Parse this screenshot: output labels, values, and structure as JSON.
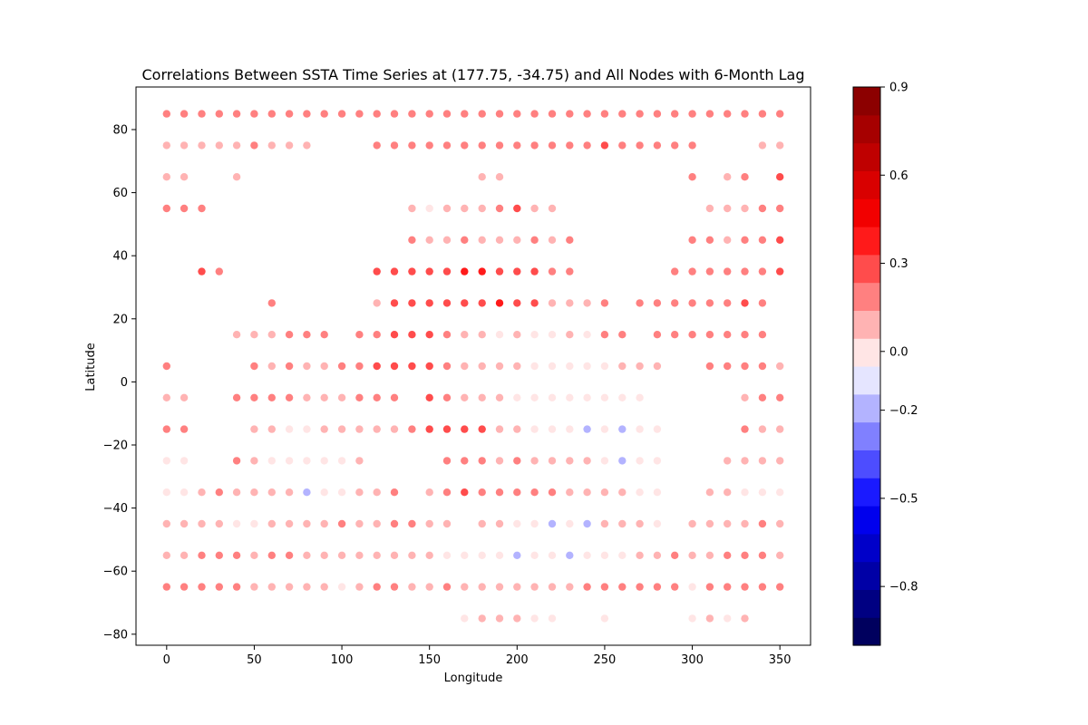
{
  "chart_data": {
    "type": "scatter",
    "title": "Correlations Between SSTA Time Series at (177.75, -34.75) and All Nodes with 6-Month Lag",
    "xlabel": "Longitude",
    "ylabel": "Latitude",
    "xlim": [
      -17.5,
      367.5
    ],
    "ylim": [
      -83.5,
      93.5
    ],
    "xticks": [
      0,
      50,
      100,
      150,
      200,
      250,
      300,
      350
    ],
    "yticks": [
      -80,
      -60,
      -40,
      -20,
      0,
      20,
      40,
      60,
      80
    ],
    "x_tick_labels": [
      "0",
      "50",
      "100",
      "150",
      "200",
      "250",
      "300",
      "350"
    ],
    "y_tick_labels": [
      "−80",
      "−60",
      "−40",
      "−20",
      "0",
      "20",
      "40",
      "60",
      "80"
    ],
    "grid": false,
    "colormap": "seismic",
    "colorbar": {
      "vmin": -1.0,
      "vmax": 0.9,
      "bins": 20,
      "ticks": [
        0.9,
        0.6,
        0.3,
        0.0,
        -0.2,
        -0.5,
        -0.8
      ],
      "tick_labels": [
        "0.9",
        "0.6",
        "0.3",
        "0.0",
        "−0.2",
        "−0.5",
        "−0.8"
      ]
    },
    "x_nodes": [
      0,
      10,
      20,
      30,
      40,
      50,
      60,
      70,
      80,
      90,
      100,
      110,
      120,
      130,
      140,
      150,
      160,
      170,
      180,
      190,
      200,
      210,
      220,
      230,
      240,
      250,
      260,
      270,
      280,
      290,
      300,
      310,
      320,
      330,
      340,
      350
    ],
    "rows": [
      {
        "lat": 85,
        "values": [
          0.2,
          0.2,
          0.2,
          0.2,
          0.2,
          0.2,
          0.2,
          0.2,
          0.2,
          0.2,
          0.2,
          0.2,
          0.2,
          0.2,
          0.2,
          0.2,
          0.2,
          0.2,
          0.2,
          0.2,
          0.2,
          0.2,
          0.2,
          0.2,
          0.2,
          0.2,
          0.2,
          0.2,
          0.2,
          0.2,
          0.2,
          0.2,
          0.2,
          0.2,
          0.2,
          0.2
        ]
      },
      {
        "lat": 75,
        "values": [
          0.1,
          0.1,
          0.1,
          0.1,
          0.1,
          0.2,
          0.1,
          0.1,
          0.1,
          null,
          null,
          null,
          0.2,
          0.2,
          0.2,
          0.2,
          0.2,
          0.2,
          0.2,
          0.2,
          0.2,
          0.2,
          0.2,
          0.2,
          0.2,
          0.3,
          0.2,
          0.2,
          0.2,
          0.2,
          0.2,
          null,
          null,
          null,
          0.1,
          0.1
        ]
      },
      {
        "lat": 65,
        "values": [
          0.1,
          0.1,
          null,
          null,
          0.1,
          null,
          null,
          null,
          null,
          null,
          null,
          null,
          null,
          null,
          null,
          null,
          null,
          null,
          0.1,
          0.1,
          null,
          null,
          null,
          null,
          null,
          null,
          null,
          null,
          null,
          null,
          0.2,
          null,
          0.1,
          0.2,
          null,
          0.3
        ]
      },
      {
        "lat": 55,
        "values": [
          0.2,
          0.2,
          0.2,
          null,
          null,
          null,
          null,
          null,
          null,
          null,
          null,
          null,
          null,
          null,
          0.1,
          -0.05,
          0.1,
          0.1,
          0.1,
          0.2,
          0.3,
          0.1,
          0.1,
          null,
          null,
          null,
          null,
          null,
          null,
          null,
          null,
          0.1,
          0.1,
          0.1,
          0.2,
          0.2
        ]
      },
      {
        "lat": 45,
        "values": [
          null,
          null,
          null,
          null,
          null,
          null,
          null,
          null,
          null,
          null,
          null,
          null,
          null,
          null,
          0.2,
          0.1,
          0.1,
          0.2,
          0.1,
          0.1,
          0.1,
          0.2,
          0.1,
          0.2,
          null,
          null,
          null,
          null,
          null,
          null,
          0.2,
          0.2,
          0.1,
          0.2,
          0.2,
          0.3
        ]
      },
      {
        "lat": 35,
        "values": [
          null,
          null,
          0.3,
          0.2,
          null,
          null,
          null,
          null,
          null,
          null,
          null,
          null,
          0.3,
          0.3,
          0.3,
          0.3,
          0.3,
          0.4,
          0.4,
          0.3,
          0.3,
          0.3,
          0.2,
          0.2,
          null,
          null,
          null,
          null,
          null,
          0.2,
          0.2,
          0.2,
          0.2,
          0.2,
          0.2,
          0.3
        ]
      },
      {
        "lat": 25,
        "values": [
          null,
          null,
          null,
          null,
          null,
          null,
          0.2,
          null,
          null,
          null,
          null,
          null,
          0.1,
          0.3,
          0.3,
          0.3,
          0.3,
          0.3,
          0.3,
          0.4,
          0.3,
          0.3,
          0.1,
          0.1,
          0.1,
          0.2,
          null,
          0.2,
          0.2,
          0.2,
          0.2,
          0.2,
          0.2,
          0.3,
          0.2,
          null
        ]
      },
      {
        "lat": 15,
        "values": [
          null,
          null,
          null,
          null,
          0.1,
          0.1,
          0.1,
          0.2,
          0.2,
          0.2,
          null,
          0.2,
          0.2,
          0.3,
          0.3,
          0.3,
          0.2,
          0.1,
          0.1,
          -0.05,
          0.1,
          -0.05,
          -0.05,
          0.1,
          -0.05,
          0.2,
          0.2,
          null,
          0.2,
          0.2,
          0.2,
          0.2,
          0.2,
          0.2,
          0.2,
          null
        ]
      },
      {
        "lat": 5,
        "values": [
          0.2,
          null,
          null,
          null,
          null,
          0.2,
          0.1,
          0.2,
          0.1,
          0.1,
          0.2,
          0.2,
          0.3,
          0.3,
          0.3,
          0.3,
          0.2,
          0.1,
          0.1,
          0.1,
          0.1,
          -0.05,
          -0.05,
          -0.05,
          -0.05,
          -0.05,
          0.1,
          0.1,
          0.1,
          null,
          null,
          0.2,
          0.2,
          0.2,
          0.2,
          0.1
        ]
      },
      {
        "lat": -5,
        "values": [
          0.1,
          0.1,
          null,
          null,
          0.2,
          0.2,
          0.2,
          0.2,
          0.1,
          0.1,
          0.1,
          0.2,
          0.2,
          0.2,
          null,
          0.3,
          0.2,
          0.1,
          0.1,
          0.1,
          -0.05,
          -0.05,
          -0.05,
          -0.05,
          -0.05,
          -0.05,
          -0.05,
          -0.05,
          null,
          null,
          null,
          null,
          null,
          0.1,
          0.2,
          0.2
        ]
      },
      {
        "lat": -15,
        "values": [
          0.2,
          0.2,
          null,
          null,
          null,
          0.1,
          0.1,
          -0.05,
          -0.05,
          0.1,
          0.1,
          0.1,
          0.1,
          0.1,
          0.2,
          0.3,
          0.3,
          0.3,
          0.3,
          0.1,
          0.1,
          -0.05,
          -0.05,
          -0.05,
          -0.15,
          -0.05,
          -0.15,
          -0.05,
          -0.05,
          null,
          null,
          null,
          null,
          0.2,
          0.1,
          0.1
        ]
      },
      {
        "lat": -25,
        "values": [
          -0.05,
          -0.05,
          null,
          null,
          0.2,
          0.1,
          -0.05,
          -0.05,
          -0.05,
          -0.05,
          -0.05,
          0.1,
          null,
          null,
          null,
          null,
          0.2,
          0.2,
          0.2,
          0.1,
          0.2,
          0.1,
          0.1,
          0.1,
          0.1,
          -0.05,
          -0.15,
          -0.05,
          -0.05,
          null,
          null,
          null,
          0.1,
          0.1,
          0.1,
          0.1
        ]
      },
      {
        "lat": -35,
        "values": [
          -0.05,
          -0.05,
          0.1,
          0.2,
          0.1,
          0.1,
          0.1,
          0.1,
          -0.15,
          -0.05,
          -0.05,
          0.1,
          0.1,
          0.2,
          null,
          0.1,
          0.2,
          0.3,
          0.2,
          0.2,
          0.2,
          0.2,
          0.2,
          0.1,
          0.1,
          0.1,
          0.1,
          -0.05,
          -0.05,
          null,
          null,
          0.1,
          0.1,
          -0.05,
          -0.05,
          -0.05
        ]
      },
      {
        "lat": -45,
        "values": [
          0.1,
          0.1,
          0.1,
          0.1,
          -0.05,
          -0.05,
          0.1,
          0.1,
          0.1,
          0.1,
          0.2,
          0.1,
          0.1,
          0.2,
          0.2,
          0.1,
          0.1,
          null,
          0.1,
          0.1,
          -0.05,
          -0.05,
          -0.15,
          -0.05,
          -0.15,
          0.1,
          0.1,
          0.1,
          -0.05,
          null,
          0.1,
          0.1,
          0.1,
          0.1,
          0.2,
          0.1
        ]
      },
      {
        "lat": -55,
        "values": [
          0.1,
          0.1,
          0.2,
          0.2,
          0.2,
          0.1,
          0.2,
          0.2,
          0.1,
          0.1,
          0.1,
          0.1,
          0.1,
          0.1,
          0.1,
          0.1,
          -0.05,
          -0.05,
          -0.05,
          -0.05,
          -0.15,
          -0.05,
          -0.05,
          -0.2,
          -0.05,
          -0.05,
          -0.05,
          0.1,
          0.1,
          0.2,
          0.1,
          0.1,
          0.2,
          0.2,
          0.2,
          0.1
        ]
      },
      {
        "lat": -65,
        "values": [
          0.2,
          0.2,
          0.2,
          0.2,
          0.2,
          0.1,
          0.1,
          0.1,
          0.1,
          0.1,
          -0.05,
          0.1,
          0.2,
          0.2,
          0.1,
          0.1,
          0.2,
          0.1,
          0.1,
          0.1,
          0.1,
          0.1,
          0.1,
          0.1,
          0.2,
          0.2,
          0.2,
          0.2,
          0.2,
          0.2,
          -0.05,
          0.2,
          0.2,
          0.2,
          0.2,
          0.2
        ]
      },
      {
        "lat": -75,
        "values": [
          null,
          null,
          null,
          null,
          null,
          null,
          null,
          null,
          null,
          null,
          null,
          null,
          null,
          null,
          null,
          null,
          null,
          -0.05,
          0.1,
          0.1,
          0.1,
          -0.05,
          -0.05,
          null,
          null,
          -0.05,
          null,
          null,
          null,
          null,
          -0.05,
          0.1,
          -0.05,
          0.1,
          null,
          null
        ]
      }
    ]
  }
}
